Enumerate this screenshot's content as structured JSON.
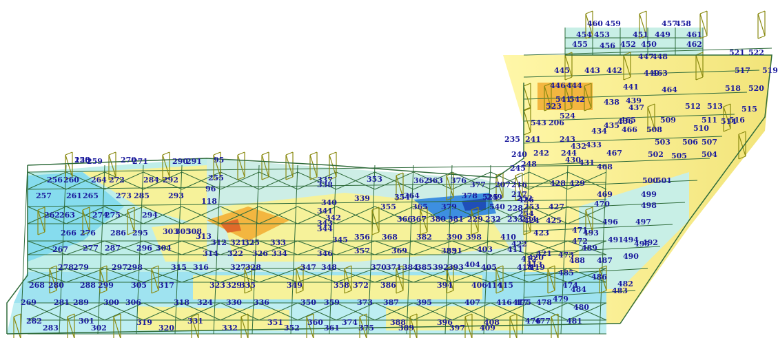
{
  "colors": {
    "background": "#ffffff",
    "mesh_line": "#2e6b3a",
    "support_line": "#8a8a10",
    "label": "#1a1a9c",
    "contour_low": "#7fd6ea",
    "contour_mid_low": "#c8efe6",
    "contour_mid": "#f6f29a",
    "contour_high": "#f3b640",
    "contour_peak": "#e06a2a",
    "contour_min": "#1f6fd6"
  },
  "element_labels": [
    "258",
    "259",
    "270",
    "271",
    "290",
    "291",
    "256",
    "260",
    "264",
    "272",
    "284",
    "292",
    "257",
    "261",
    "265",
    "273",
    "285",
    "293",
    "262",
    "263",
    "274",
    "275",
    "294",
    "266",
    "276",
    "286",
    "295",
    "296",
    "303",
    "305",
    "308",
    "267",
    "277",
    "287",
    "304",
    "278",
    "279",
    "297",
    "298",
    "268",
    "280",
    "288",
    "299",
    "305",
    "317",
    "269",
    "281",
    "289",
    "300",
    "306",
    "282",
    "283",
    "301",
    "302",
    "319",
    "315",
    "316",
    "313",
    "312",
    "314",
    "322",
    "321",
    "325",
    "326",
    "327",
    "328",
    "323",
    "329",
    "318",
    "324",
    "330",
    "320",
    "331",
    "332",
    "333",
    "334",
    "335",
    "336",
    "337",
    "338",
    "339",
    "340",
    "341",
    "342",
    "343",
    "344",
    "345",
    "346",
    "347",
    "348",
    "349",
    "350",
    "351",
    "352",
    "353",
    "354",
    "355",
    "356",
    "357",
    "358",
    "359",
    "360",
    "361",
    "362",
    "363",
    "364",
    "365",
    "366",
    "367",
    "368",
    "369",
    "370",
    "371",
    "372",
    "373",
    "374",
    "375",
    "376",
    "377",
    "378",
    "379",
    "380",
    "381",
    "382",
    "383",
    "384",
    "385",
    "386",
    "387",
    "388",
    "389",
    "390",
    "391",
    "392",
    "393",
    "394",
    "395",
    "396",
    "397",
    "398",
    "403",
    "404",
    "405",
    "406",
    "407",
    "408",
    "409",
    "410",
    "411",
    "412",
    "413",
    "414",
    "415",
    "416",
    "417",
    "418",
    "419",
    "420",
    "421",
    "422",
    "423",
    "424",
    "425",
    "426",
    "427",
    "428",
    "429",
    "430",
    "431",
    "432",
    "433",
    "434",
    "435",
    "436",
    "437",
    "438",
    "439",
    "440",
    "441",
    "442",
    "443",
    "444",
    "445",
    "446",
    "447",
    "448",
    "449",
    "450",
    "451",
    "452",
    "453",
    "454",
    "455",
    "456",
    "457",
    "458",
    "459",
    "460",
    "461",
    "462",
    "463",
    "464",
    "465",
    "466",
    "467",
    "468",
    "469",
    "470",
    "471",
    "472",
    "473",
    "474",
    "475",
    "476",
    "477",
    "478",
    "479",
    "480",
    "481",
    "482",
    "483",
    "484",
    "485",
    "486",
    "487",
    "488",
    "489",
    "490",
    "491",
    "492",
    "493",
    "494",
    "495",
    "496",
    "497",
    "498",
    "499",
    "500",
    "501",
    "502",
    "503",
    "504",
    "505",
    "506",
    "507",
    "508",
    "509",
    "510",
    "511",
    "512",
    "513",
    "514",
    "515",
    "516",
    "517",
    "518",
    "519",
    "520",
    "521",
    "522",
    "523",
    "524",
    "525",
    "540",
    "541",
    "542",
    "543",
    "206",
    "207",
    "216",
    "217",
    "228",
    "229",
    "232",
    "233",
    "234",
    "235",
    "240",
    "241",
    "242",
    "243",
    "244",
    "245",
    "248",
    "249",
    "252",
    "253",
    "254",
    "255",
    "95",
    "96",
    "118",
    "120"
  ]
}
